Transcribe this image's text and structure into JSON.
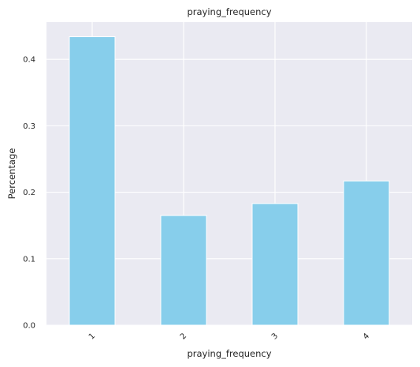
{
  "chart_data": {
    "type": "bar",
    "title": "praying_frequency",
    "xlabel": "praying_frequency",
    "ylabel": "Percentage",
    "categories": [
      "1",
      "2",
      "3",
      "4"
    ],
    "values": [
      0.434,
      0.165,
      0.183,
      0.217
    ],
    "ylim": [
      0,
      0.456
    ],
    "yticks": [
      0.0,
      0.1,
      0.2,
      0.3,
      0.4
    ],
    "ytick_labels": [
      "0.0",
      "0.1",
      "0.2",
      "0.3",
      "0.4"
    ],
    "grid": true,
    "bar_color": "#87ceeb",
    "background_color": "#eaeaf2",
    "grid_color": "#ffffff"
  }
}
